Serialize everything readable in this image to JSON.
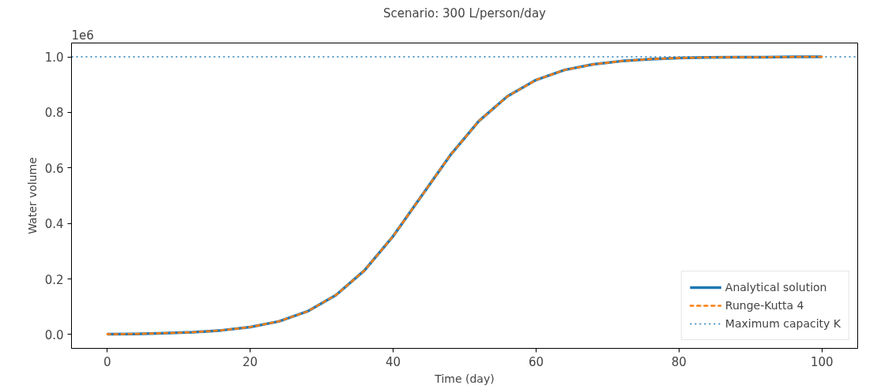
{
  "chart_data": {
    "type": "line",
    "title": "Scenario: 300 L/person/day",
    "xlabel": "Time (day)",
    "ylabel": "Water volume",
    "annotations": [
      "1e6"
    ],
    "x": [
      0,
      4,
      8,
      12,
      16,
      20,
      24,
      28,
      32,
      36,
      40,
      44,
      48,
      52,
      56,
      60,
      64,
      68,
      72,
      76,
      80,
      84,
      88,
      92,
      96,
      100
    ],
    "series": [
      {
        "name": "Analytical solution",
        "color": "#1f77b4",
        "line_style": "solid",
        "values": [
          0.001,
          0.002,
          0.005,
          0.008,
          0.015,
          0.027,
          0.047,
          0.083,
          0.142,
          0.231,
          0.354,
          0.5,
          0.646,
          0.769,
          0.858,
          0.917,
          0.953,
          0.973,
          0.985,
          0.992,
          0.996,
          0.998,
          0.999,
          0.999,
          1.0,
          1.0
        ]
      },
      {
        "name": "Runge-Kutta 4",
        "color": "#ff7f0e",
        "line_style": "dashed",
        "values": [
          0.001,
          0.002,
          0.005,
          0.008,
          0.015,
          0.027,
          0.047,
          0.083,
          0.142,
          0.231,
          0.354,
          0.5,
          0.646,
          0.769,
          0.858,
          0.917,
          0.953,
          0.973,
          0.985,
          0.992,
          0.996,
          0.998,
          0.999,
          0.999,
          1.0,
          1.0
        ]
      }
    ],
    "ref_lines": [
      {
        "axis": "y",
        "value": 1.0,
        "label": "Maximum capacity K",
        "color": "#1f77b4",
        "line_style": "dotted"
      }
    ],
    "xlim": [
      -5,
      105
    ],
    "ylim": [
      -0.05,
      1.05
    ],
    "xticks": [
      0,
      20,
      40,
      60,
      80,
      100
    ],
    "yticks": [
      {
        "value": 0,
        "label": "0.0"
      },
      0.2,
      0.4,
      0.6,
      0.8,
      {
        "value": 1,
        "label": "1.0"
      }
    ],
    "grid": false,
    "legend": "bottom right"
  }
}
